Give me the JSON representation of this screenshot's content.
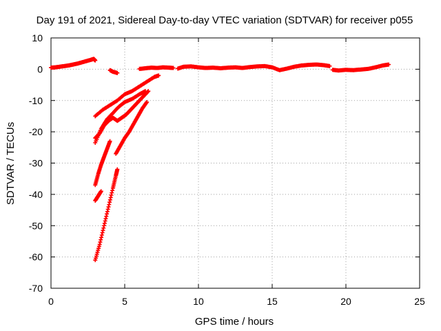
{
  "chart_data": {
    "type": "scatter",
    "title": "Day 191 of 2021, Sidereal Day-to-day VTEC variation (SDTVAR) for receiver p055",
    "xlabel": "GPS time / hours",
    "ylabel": "SDTVAR / TECUs",
    "xlim": [
      0,
      25
    ],
    "ylim": [
      -70,
      10
    ],
    "xticks": [
      0,
      5,
      10,
      15,
      20,
      25
    ],
    "yticks": [
      -70,
      -60,
      -50,
      -40,
      -30,
      -20,
      -10,
      0,
      10
    ],
    "xtick_labels": [
      "0",
      "5",
      "10",
      "15",
      "20",
      "25"
    ],
    "ytick_labels": [
      "-70",
      "-60",
      "-50",
      "-40",
      "-30",
      "-20",
      "-10",
      "0",
      "10"
    ],
    "grid": true,
    "marker": "+",
    "color": "#ff0000",
    "series": [
      {
        "name": "s1",
        "x": [
          0.0,
          0.3,
          0.6,
          0.9,
          1.2,
          1.5,
          1.8,
          2.1,
          2.4,
          2.7,
          2.9,
          3.0
        ],
        "y": [
          0.5,
          0.6,
          0.8,
          1.0,
          1.2,
          1.5,
          1.8,
          2.2,
          2.6,
          3.0,
          3.3,
          2.8
        ]
      },
      {
        "name": "s2",
        "x": [
          4.0,
          4.2,
          4.5
        ],
        "y": [
          -0.3,
          -0.8,
          -1.2
        ]
      },
      {
        "name": "s3",
        "x": [
          6.0,
          6.4,
          6.8,
          7.2,
          7.6,
          8.0,
          8.3
        ],
        "y": [
          0.1,
          0.3,
          0.5,
          0.4,
          0.6,
          0.5,
          0.4
        ]
      },
      {
        "name": "s4",
        "x": [
          8.6,
          9.0,
          9.5,
          10.0,
          10.5,
          11.0,
          11.5,
          12.0,
          12.5,
          13.0,
          13.5,
          14.0,
          14.5,
          15.0,
          15.5,
          16.0,
          16.5,
          17.0,
          17.5,
          18.0,
          18.5,
          18.9
        ],
        "y": [
          0.2,
          0.8,
          0.9,
          0.6,
          0.4,
          0.5,
          0.3,
          0.5,
          0.6,
          0.4,
          0.7,
          0.9,
          1.0,
          0.6,
          -0.3,
          0.2,
          0.8,
          1.2,
          1.4,
          1.5,
          1.3,
          1.0
        ]
      },
      {
        "name": "s5",
        "x": [
          19.1,
          19.5,
          20.0,
          20.5,
          21.0,
          21.5,
          22.0,
          22.5,
          22.9
        ],
        "y": [
          -0.2,
          -0.4,
          -0.2,
          -0.3,
          -0.1,
          0.1,
          0.6,
          1.2,
          1.5
        ]
      },
      {
        "name": "s6",
        "x": [
          3.0,
          3.5,
          4.0,
          4.5,
          5.0,
          5.5,
          6.0,
          6.5,
          7.0,
          7.3
        ],
        "y": [
          -15.0,
          -13.0,
          -11.5,
          -10.0,
          -8.0,
          -7.0,
          -5.5,
          -4.0,
          -2.5,
          -2.0
        ]
      },
      {
        "name": "s7",
        "x": [
          3.0,
          3.4,
          3.8,
          4.2,
          4.6,
          5.0,
          5.5,
          6.0,
          6.4
        ],
        "y": [
          -23.5,
          -19.0,
          -16.0,
          -14.0,
          -12.0,
          -10.5,
          -9.5,
          -8.0,
          -7.0
        ]
      },
      {
        "name": "s8",
        "x": [
          3.0,
          3.3,
          3.6,
          3.9,
          4.2,
          4.5,
          4.8,
          5.1,
          5.4,
          5.7,
          6.0,
          6.3,
          6.6
        ],
        "y": [
          -22.0,
          -20.5,
          -18.0,
          -16.5,
          -15.5,
          -16.5,
          -15.5,
          -14.5,
          -13.0,
          -11.5,
          -10.0,
          -8.5,
          -7.0
        ]
      },
      {
        "name": "s9",
        "x": [
          3.0,
          3.2,
          3.4,
          3.6,
          3.8,
          4.0
        ],
        "y": [
          -37.0,
          -33.5,
          -30.5,
          -28.0,
          -25.5,
          -23.0
        ]
      },
      {
        "name": "s10",
        "x": [
          4.4,
          4.7,
          5.0,
          5.3,
          5.6,
          5.9,
          6.2,
          6.5
        ],
        "y": [
          -27.0,
          -24.5,
          -22.0,
          -20.0,
          -17.5,
          -15.0,
          -12.5,
          -10.5
        ]
      },
      {
        "name": "s11",
        "x": [
          3.0,
          3.2,
          3.4
        ],
        "y": [
          -42.0,
          -40.5,
          -39.0
        ]
      },
      {
        "name": "s12",
        "x": [
          3.0,
          3.3,
          3.6,
          3.9,
          4.2,
          4.4,
          4.5
        ],
        "y": [
          -61.0,
          -56.0,
          -50.0,
          -44.0,
          -38.0,
          -34.0,
          -32.0
        ]
      }
    ]
  }
}
